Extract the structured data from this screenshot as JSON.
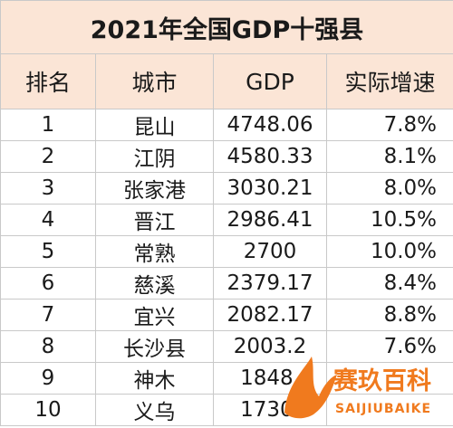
{
  "table": {
    "title": "2021年全国GDP十强县",
    "header": [
      "排名",
      "城市",
      "GDP",
      "实际增速"
    ],
    "rows": [
      [
        "1",
        "昆山",
        "4748.06",
        "7.8%"
      ],
      [
        "2",
        "江阴",
        "4580.33",
        "8.1%"
      ],
      [
        "3",
        "张家港",
        "3030.21",
        "8.0%"
      ],
      [
        "4",
        "晋江",
        "2986.41",
        "10.5%"
      ],
      [
        "5",
        "常熟",
        "2700",
        "10.0%"
      ],
      [
        "6",
        "慈溪",
        "2379.17",
        "8.4%"
      ],
      [
        "7",
        "宜兴",
        "2082.17",
        "8.8%"
      ],
      [
        "8",
        "长沙县",
        "2003.2",
        "7.6%"
      ],
      [
        "9",
        "神木",
        "1848.",
        ""
      ],
      [
        "10",
        "义乌",
        "1730.",
        ""
      ]
    ]
  },
  "watermark": {
    "title": "赛玖百科",
    "subtitle": "SAIJIUBAIKE"
  }
}
